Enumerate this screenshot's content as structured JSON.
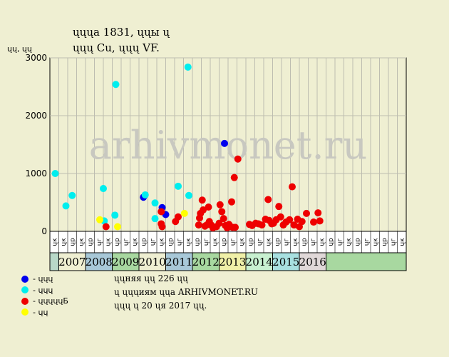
{
  "header": {
    "line1": "ųųųа 1831, ųųы ų",
    "line2": "ųųų Cu, ųųų VF.",
    "y_unit": "ųų, ųų"
  },
  "watermark": "arhivmonet.ru",
  "legend": [
    {
      "color": "#0000ee",
      "label": "- ųųų"
    },
    {
      "color": "#00eeee",
      "label": "- ųųų"
    },
    {
      "color": "#ee0000",
      "label": "- ųųųųųБ"
    },
    {
      "color": "#ffff00",
      "label": "- ųų"
    }
  ],
  "notes": {
    "line1": "ųųняя ųų 226 ųų",
    "line2": "ų ųųųиям ųųа ARHIVMONET.RU",
    "line3": "ųųų ų 20 ųя 2017 ųų."
  },
  "chart_data": {
    "type": "scatter",
    "ylim": [
      0,
      3000
    ],
    "yticks": [
      0,
      1000,
      2000,
      3000
    ],
    "grid": true,
    "quarter_labels": [
      "ųк",
      "ųк",
      "ųр",
      "ųк",
      "ųр",
      "ųг",
      "ųк",
      "ųр",
      "ųг",
      "ųк",
      "ųр",
      "ųг",
      "ųк",
      "ųр",
      "ųг",
      "ųк",
      "ųр",
      "ųг",
      "ųк",
      "ųр",
      "ųг",
      "ųк",
      "ųр",
      "ųг",
      "ųк",
      "ųр",
      "ųг",
      "ųк",
      "ųр",
      "ųг",
      "ųк",
      "ųр",
      "ųг",
      "ųк",
      "ųр",
      "ųг",
      "ųк",
      "ųр",
      "ųг",
      "ųк"
    ],
    "years": [
      {
        "label": "2007",
        "start": 1,
        "end": 4,
        "color": "#efefd2"
      },
      {
        "label": "2008",
        "start": 4,
        "end": 7,
        "color": "#a8c8d8"
      },
      {
        "label": "2009",
        "start": 7,
        "end": 10,
        "color": "#a8d8a0"
      },
      {
        "label": "2010",
        "start": 10,
        "end": 13,
        "color": "#efefd2"
      },
      {
        "label": "2011",
        "start": 13,
        "end": 16,
        "color": "#a8c8d8"
      },
      {
        "label": "2012",
        "start": 16,
        "end": 19,
        "color": "#a8d8a0"
      },
      {
        "label": "2013",
        "start": 19,
        "end": 22,
        "color": "#f0f0a8"
      },
      {
        "label": "2014",
        "start": 22,
        "end": 25,
        "color": "#c8f0d0"
      },
      {
        "label": "2015",
        "start": 25,
        "end": 28,
        "color": "#a8e0e0"
      },
      {
        "label": "2016",
        "start": 28,
        "end": 31,
        "color": "#e0d8d8"
      }
    ],
    "series": [
      {
        "color": "#0000ee",
        "points": [
          [
            10.0,
            590
          ],
          [
            12.1,
            410
          ],
          [
            12.5,
            290
          ],
          [
            19.1,
            1520
          ]
        ]
      },
      {
        "color": "#00eeee",
        "points": [
          [
            0.1,
            1000
          ],
          [
            1.3,
            440
          ],
          [
            2.0,
            620
          ],
          [
            5.5,
            740
          ],
          [
            5.6,
            180
          ],
          [
            6.8,
            280
          ],
          [
            6.9,
            2540
          ],
          [
            10.2,
            630
          ],
          [
            11.3,
            490
          ],
          [
            11.3,
            220
          ],
          [
            13.9,
            780
          ],
          [
            15.0,
            2840
          ],
          [
            15.1,
            620
          ]
        ]
      },
      {
        "color": "#ffff00",
        "points": [
          [
            5.1,
            200
          ],
          [
            7.1,
            80
          ],
          [
            14.6,
            310
          ]
        ]
      },
      {
        "color": "#ee0000",
        "points": [
          [
            5.8,
            80
          ],
          [
            12.0,
            340
          ],
          [
            12.0,
            130
          ],
          [
            12.1,
            80
          ],
          [
            13.6,
            170
          ],
          [
            13.9,
            250
          ],
          [
            16.2,
            110
          ],
          [
            16.3,
            230
          ],
          [
            16.4,
            310
          ],
          [
            16.6,
            540
          ],
          [
            16.7,
            370
          ],
          [
            16.9,
            90
          ],
          [
            17.1,
            110
          ],
          [
            17.3,
            420
          ],
          [
            17.4,
            170
          ],
          [
            17.6,
            110
          ],
          [
            17.8,
            60
          ],
          [
            18.2,
            80
          ],
          [
            18.5,
            140
          ],
          [
            18.6,
            460
          ],
          [
            18.8,
            340
          ],
          [
            19.0,
            220
          ],
          [
            19.2,
            100
          ],
          [
            19.4,
            60
          ],
          [
            19.6,
            120
          ],
          [
            19.8,
            80
          ],
          [
            19.9,
            510
          ],
          [
            20.0,
            70
          ],
          [
            20.2,
            930
          ],
          [
            20.3,
            70
          ],
          [
            20.6,
            1250
          ],
          [
            21.9,
            120
          ],
          [
            22.2,
            100
          ],
          [
            22.6,
            140
          ],
          [
            22.9,
            130
          ],
          [
            23.3,
            110
          ],
          [
            23.7,
            210
          ],
          [
            24.0,
            550
          ],
          [
            24.1,
            190
          ],
          [
            24.4,
            130
          ],
          [
            24.6,
            140
          ],
          [
            24.9,
            200
          ],
          [
            25.2,
            430
          ],
          [
            25.4,
            250
          ],
          [
            25.7,
            110
          ],
          [
            26.0,
            160
          ],
          [
            26.4,
            200
          ],
          [
            26.7,
            770
          ],
          [
            26.9,
            110
          ],
          [
            27.3,
            210
          ],
          [
            27.5,
            80
          ],
          [
            27.8,
            170
          ],
          [
            28.3,
            310
          ],
          [
            29.1,
            160
          ],
          [
            29.6,
            320
          ],
          [
            29.8,
            180
          ]
        ]
      }
    ]
  }
}
